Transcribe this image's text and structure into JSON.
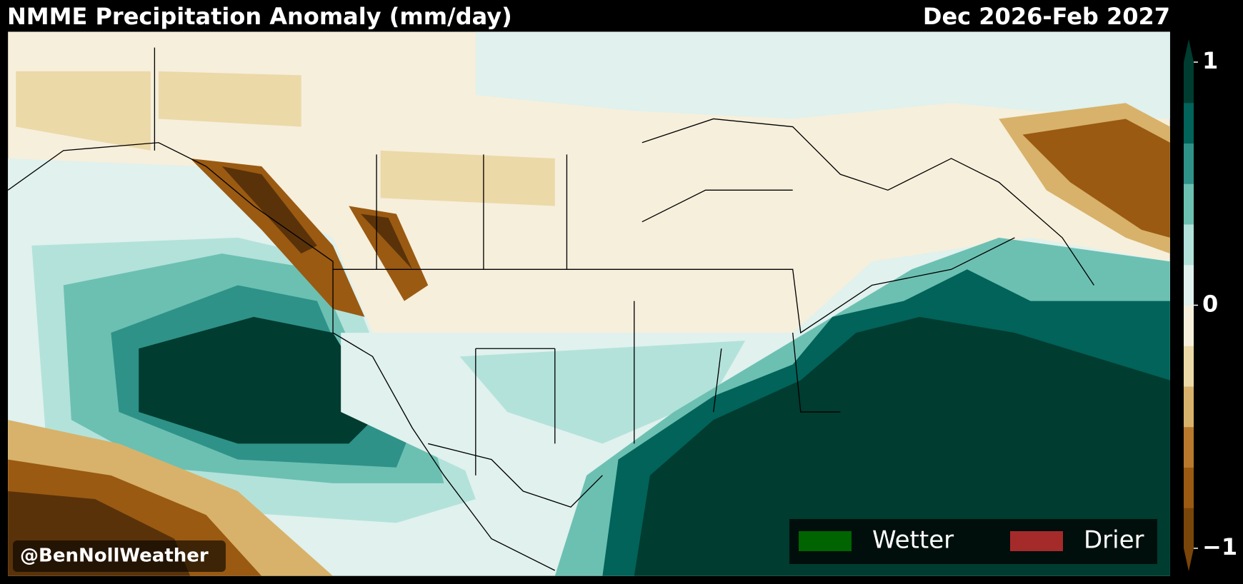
{
  "header": {
    "title": "NMME Precipitation Anomaly (mm/day)",
    "period": "Dec 2026-Feb 2027"
  },
  "colorbar": {
    "range": [
      -1,
      1
    ],
    "ticks": [
      {
        "value": -1,
        "label": "−1"
      },
      0,
      1
    ],
    "colors": [
      "#7a4508",
      "#9a5a12",
      "#b8792c",
      "#d8b26a",
      "#ecd9a8",
      "#f6efdc",
      "#e0f1ee",
      "#b3e2da",
      "#6cc0b2",
      "#2e9288",
      "#016359",
      "#003c30"
    ]
  },
  "legend": [
    {
      "label": "Wetter",
      "color": "#006400"
    },
    {
      "label": "Drier",
      "color": "#a52a2a"
    }
  ],
  "watermark": "@BenNollWeather"
}
